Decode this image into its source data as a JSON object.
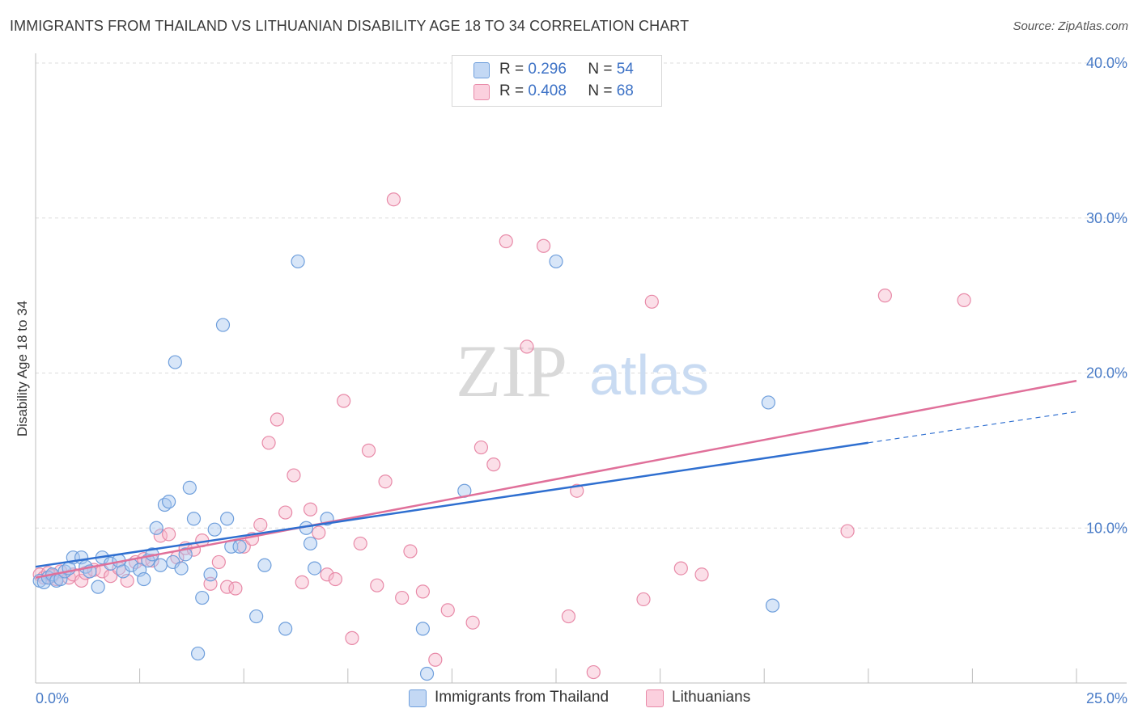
{
  "header": {
    "title": "IMMIGRANTS FROM THAILAND VS LITHUANIAN DISABILITY AGE 18 TO 34 CORRELATION CHART",
    "source": "Source: ZipAtlas.com"
  },
  "watermark": {
    "zip": "ZIP",
    "atlas": "atlas"
  },
  "legend": {
    "series1": {
      "r_label": "R =",
      "r_value": "0.296",
      "n_label": "N =",
      "n_value": "54"
    },
    "series2": {
      "r_label": "R =",
      "r_value": "0.408",
      "n_label": "N =",
      "n_value": "68"
    }
  },
  "colors": {
    "blue_fill": "#a9c8f0",
    "blue_stroke": "#6f9fdc",
    "blue_line": "#2f6fd0",
    "pink_fill": "#f7b8cc",
    "pink_stroke": "#e88aa8",
    "pink_line": "#e0709a",
    "grid": "#dcdcdc",
    "tick_text": "#4a7cc7"
  },
  "chart_data": {
    "type": "scatter",
    "title": "IMMIGRANTS FROM THAILAND VS LITHUANIAN DISABILITY AGE 18 TO 34 CORRELATION CHART",
    "xlabel": "",
    "ylabel": "Disability Age 18 to 34",
    "xlim": [
      0,
      25
    ],
    "ylim": [
      0,
      40
    ],
    "x_tick_labels": [
      "0.0%",
      "25.0%"
    ],
    "y_ticks": [
      10,
      20,
      30,
      40
    ],
    "y_tick_labels": [
      "10.0%",
      "20.0%",
      "30.0%",
      "40.0%"
    ],
    "grid": true,
    "legend_position": "top-center",
    "series": [
      {
        "name": "Immigrants from Thailand",
        "color": "blue",
        "trend": {
          "x0": 0,
          "y0": 7.5,
          "x1": 20,
          "y1": 15.5,
          "x_dash_end": 25,
          "y_dash_end": 17.5
        },
        "points": [
          [
            0.1,
            6.6
          ],
          [
            0.2,
            6.5
          ],
          [
            0.3,
            6.8
          ],
          [
            0.4,
            7.0
          ],
          [
            0.5,
            6.6
          ],
          [
            0.6,
            6.7
          ],
          [
            0.7,
            7.2
          ],
          [
            0.8,
            7.4
          ],
          [
            0.9,
            8.1
          ],
          [
            1.1,
            8.1
          ],
          [
            1.2,
            7.5
          ],
          [
            1.3,
            7.2
          ],
          [
            1.5,
            6.2
          ],
          [
            1.6,
            8.1
          ],
          [
            1.8,
            7.7
          ],
          [
            2.0,
            7.9
          ],
          [
            2.1,
            7.2
          ],
          [
            2.3,
            7.6
          ],
          [
            2.5,
            7.3
          ],
          [
            2.6,
            6.7
          ],
          [
            2.7,
            7.9
          ],
          [
            2.8,
            8.3
          ],
          [
            2.9,
            10.0
          ],
          [
            3.0,
            7.6
          ],
          [
            3.1,
            11.5
          ],
          [
            3.2,
            11.7
          ],
          [
            3.3,
            7.8
          ],
          [
            3.35,
            20.7
          ],
          [
            3.5,
            7.4
          ],
          [
            3.6,
            8.3
          ],
          [
            3.7,
            12.6
          ],
          [
            3.8,
            10.6
          ],
          [
            4.0,
            5.5
          ],
          [
            4.2,
            7.0
          ],
          [
            4.3,
            9.9
          ],
          [
            4.5,
            23.1
          ],
          [
            4.6,
            10.6
          ],
          [
            4.7,
            8.8
          ],
          [
            4.9,
            8.8
          ],
          [
            5.3,
            4.3
          ],
          [
            5.5,
            7.6
          ],
          [
            6.3,
            27.2
          ],
          [
            6.5,
            10.0
          ],
          [
            6.6,
            9.0
          ],
          [
            6.7,
            7.4
          ],
          [
            7.0,
            10.6
          ],
          [
            9.3,
            3.5
          ],
          [
            9.4,
            0.6
          ],
          [
            10.3,
            12.4
          ],
          [
            12.5,
            27.2
          ],
          [
            17.6,
            18.1
          ],
          [
            17.7,
            5.0
          ],
          [
            3.9,
            1.9
          ],
          [
            6.0,
            3.5
          ]
        ]
      },
      {
        "name": "Lithuanians",
        "color": "pink",
        "trend": {
          "x0": 0,
          "y0": 6.8,
          "x1": 25,
          "y1": 19.5
        },
        "points": [
          [
            0.1,
            7.0
          ],
          [
            0.2,
            6.8
          ],
          [
            0.3,
            7.1
          ],
          [
            0.4,
            6.9
          ],
          [
            0.5,
            6.7
          ],
          [
            0.6,
            7.2
          ],
          [
            0.8,
            6.8
          ],
          [
            0.9,
            7.0
          ],
          [
            1.1,
            6.6
          ],
          [
            1.2,
            7.1
          ],
          [
            1.4,
            7.3
          ],
          [
            1.6,
            7.2
          ],
          [
            1.8,
            6.9
          ],
          [
            2.0,
            7.4
          ],
          [
            2.2,
            6.6
          ],
          [
            2.4,
            7.8
          ],
          [
            2.6,
            8.0
          ],
          [
            2.8,
            7.9
          ],
          [
            3.0,
            9.5
          ],
          [
            3.2,
            9.6
          ],
          [
            3.4,
            8.1
          ],
          [
            3.6,
            8.7
          ],
          [
            3.8,
            8.6
          ],
          [
            4.0,
            9.2
          ],
          [
            4.2,
            6.4
          ],
          [
            4.4,
            7.8
          ],
          [
            4.6,
            6.2
          ],
          [
            4.8,
            6.1
          ],
          [
            5.0,
            8.8
          ],
          [
            5.2,
            9.3
          ],
          [
            5.4,
            10.2
          ],
          [
            5.6,
            15.5
          ],
          [
            5.8,
            17.0
          ],
          [
            6.0,
            11.0
          ],
          [
            6.2,
            13.4
          ],
          [
            6.4,
            6.5
          ],
          [
            6.6,
            11.2
          ],
          [
            6.8,
            9.7
          ],
          [
            7.0,
            7.0
          ],
          [
            7.2,
            6.7
          ],
          [
            7.4,
            18.2
          ],
          [
            7.6,
            2.9
          ],
          [
            7.8,
            9.0
          ],
          [
            8.0,
            15.0
          ],
          [
            8.2,
            6.3
          ],
          [
            8.4,
            13.0
          ],
          [
            8.6,
            31.2
          ],
          [
            8.8,
            5.5
          ],
          [
            9.0,
            8.5
          ],
          [
            9.3,
            5.9
          ],
          [
            9.6,
            1.5
          ],
          [
            9.9,
            4.7
          ],
          [
            10.5,
            3.9
          ],
          [
            10.7,
            15.2
          ],
          [
            11.0,
            14.1
          ],
          [
            11.3,
            28.5
          ],
          [
            11.8,
            21.7
          ],
          [
            12.2,
            28.2
          ],
          [
            12.8,
            4.3
          ],
          [
            13.4,
            0.7
          ],
          [
            13.0,
            12.4
          ],
          [
            14.6,
            5.4
          ],
          [
            14.8,
            24.6
          ],
          [
            15.5,
            7.4
          ],
          [
            16.0,
            7.0
          ],
          [
            19.5,
            9.8
          ],
          [
            20.4,
            25.0
          ],
          [
            22.3,
            24.7
          ]
        ]
      }
    ]
  }
}
